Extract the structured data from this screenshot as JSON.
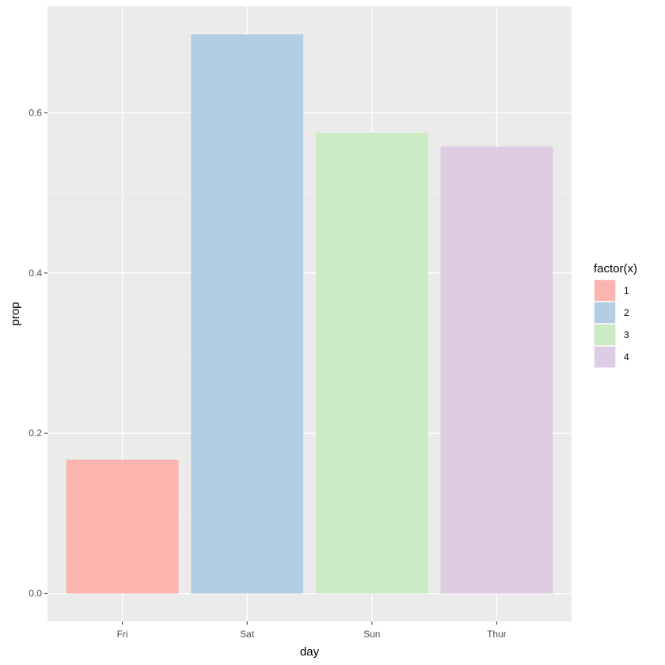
{
  "chart_data": {
    "type": "bar",
    "categories": [
      "Fri",
      "Sat",
      "Sun",
      "Thur"
    ],
    "values": [
      0.167,
      0.698,
      0.575,
      0.558
    ],
    "fill_groups": [
      "1",
      "2",
      "3",
      "4"
    ],
    "xlabel": "day",
    "ylabel": "prop",
    "ylim": [
      -0.035,
      0.733
    ],
    "yticks": [
      0.0,
      0.2,
      0.4,
      0.6
    ],
    "ytick_labels": [
      "0.0",
      "0.2",
      "0.4",
      "0.6"
    ],
    "grid": true,
    "legend": {
      "title": "factor(x)",
      "placement": "right",
      "entries": [
        "1",
        "2",
        "3",
        "4"
      ]
    },
    "colors": {
      "panel_background": "#EBEBEB",
      "grid_major": "#FFFFFF",
      "grid_minor": "#F5F5F5",
      "series": [
        "#FBB4AE",
        "#B3CDE3",
        "#CCEBC5",
        "#DECBE4"
      ]
    }
  }
}
